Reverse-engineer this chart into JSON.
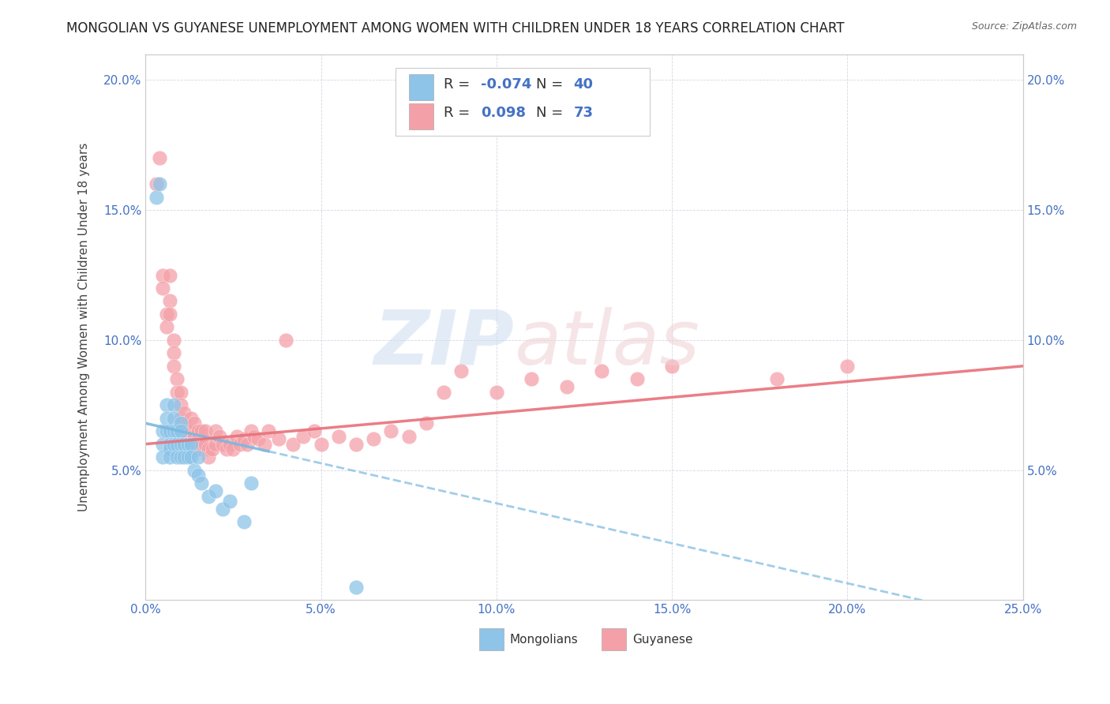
{
  "title": "MONGOLIAN VS GUYANESE UNEMPLOYMENT AMONG WOMEN WITH CHILDREN UNDER 18 YEARS CORRELATION CHART",
  "source": "Source: ZipAtlas.com",
  "ylabel": "Unemployment Among Women with Children Under 18 years",
  "xlim": [
    0.0,
    0.25
  ],
  "ylim": [
    0.0,
    0.21
  ],
  "xticks": [
    0.0,
    0.05,
    0.1,
    0.15,
    0.2,
    0.25
  ],
  "yticks": [
    0.0,
    0.05,
    0.1,
    0.15,
    0.2
  ],
  "legend_R1": "-0.074",
  "legend_N1": "40",
  "legend_R2": "0.098",
  "legend_N2": "73",
  "color_mongolian": "#8dc4e8",
  "color_guyanese": "#f4a0a8",
  "color_line_mongolian": "#7ab8e0",
  "color_line_guyanese": "#e8707a",
  "mongolian_x": [
    0.003,
    0.004,
    0.005,
    0.005,
    0.005,
    0.006,
    0.006,
    0.006,
    0.007,
    0.007,
    0.007,
    0.007,
    0.008,
    0.008,
    0.008,
    0.008,
    0.009,
    0.009,
    0.009,
    0.01,
    0.01,
    0.01,
    0.01,
    0.011,
    0.011,
    0.012,
    0.012,
    0.013,
    0.013,
    0.014,
    0.015,
    0.015,
    0.016,
    0.018,
    0.02,
    0.022,
    0.024,
    0.028,
    0.03,
    0.06
  ],
  "mongolian_y": [
    0.155,
    0.16,
    0.065,
    0.06,
    0.055,
    0.075,
    0.07,
    0.065,
    0.065,
    0.06,
    0.058,
    0.055,
    0.075,
    0.07,
    0.065,
    0.06,
    0.065,
    0.06,
    0.055,
    0.068,
    0.065,
    0.06,
    0.055,
    0.06,
    0.055,
    0.06,
    0.055,
    0.06,
    0.055,
    0.05,
    0.055,
    0.048,
    0.045,
    0.04,
    0.042,
    0.035,
    0.038,
    0.03,
    0.045,
    0.005
  ],
  "guyanese_x": [
    0.003,
    0.004,
    0.005,
    0.005,
    0.006,
    0.006,
    0.007,
    0.007,
    0.007,
    0.008,
    0.008,
    0.008,
    0.009,
    0.009,
    0.01,
    0.01,
    0.01,
    0.011,
    0.011,
    0.012,
    0.012,
    0.013,
    0.013,
    0.014,
    0.014,
    0.015,
    0.015,
    0.015,
    0.016,
    0.016,
    0.017,
    0.017,
    0.018,
    0.018,
    0.019,
    0.02,
    0.02,
    0.021,
    0.022,
    0.023,
    0.024,
    0.025,
    0.026,
    0.027,
    0.028,
    0.029,
    0.03,
    0.031,
    0.032,
    0.034,
    0.035,
    0.038,
    0.04,
    0.042,
    0.045,
    0.048,
    0.05,
    0.055,
    0.06,
    0.065,
    0.07,
    0.075,
    0.08,
    0.085,
    0.09,
    0.1,
    0.11,
    0.12,
    0.13,
    0.14,
    0.15,
    0.18,
    0.2
  ],
  "guyanese_y": [
    0.16,
    0.17,
    0.125,
    0.12,
    0.11,
    0.105,
    0.125,
    0.115,
    0.11,
    0.1,
    0.095,
    0.09,
    0.085,
    0.08,
    0.08,
    0.075,
    0.07,
    0.072,
    0.068,
    0.065,
    0.062,
    0.07,
    0.065,
    0.068,
    0.063,
    0.065,
    0.062,
    0.058,
    0.065,
    0.06,
    0.065,
    0.06,
    0.058,
    0.055,
    0.058,
    0.065,
    0.06,
    0.063,
    0.06,
    0.058,
    0.06,
    0.058,
    0.063,
    0.06,
    0.062,
    0.06,
    0.065,
    0.063,
    0.062,
    0.06,
    0.065,
    0.062,
    0.1,
    0.06,
    0.063,
    0.065,
    0.06,
    0.063,
    0.06,
    0.062,
    0.065,
    0.063,
    0.068,
    0.08,
    0.088,
    0.08,
    0.085,
    0.082,
    0.088,
    0.085,
    0.09,
    0.085,
    0.09
  ],
  "mon_trend_x": [
    0.0,
    0.13
  ],
  "mon_trend_y_start": 0.068,
  "mon_trend_y_end": 0.028,
  "guy_trend_x": [
    0.0,
    0.25
  ],
  "guy_trend_y_start": 0.06,
  "guy_trend_y_end": 0.09
}
